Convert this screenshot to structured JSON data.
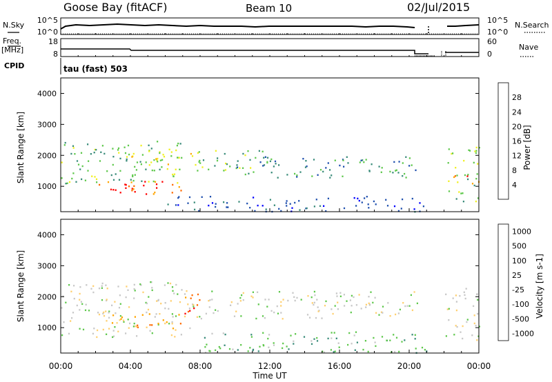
{
  "header": {
    "station": "Goose Bay (fitACF)",
    "beam": "Beam 10",
    "date": "02/Jul/2015"
  },
  "top_panels": {
    "nsky_label": "N.Sky",
    "nsearch_label": "N.Search",
    "noise_ticks": [
      "10^5",
      "10^0"
    ],
    "freq_label": "Freq.",
    "freq_unit": "[MHz]",
    "freq_ticks": [
      "18",
      "8"
    ],
    "nave_label": "Nave",
    "nave_ticks": [
      "60",
      "0"
    ],
    "cpid_label": "CPID",
    "cpid_value": "tau (fast) 503"
  },
  "colors": {
    "power": [
      "#0000ff",
      "#1f4fae",
      "#3a8c7a",
      "#5fc84c",
      "#f0f020",
      "#ffa500",
      "#ff6a00",
      "#ff0000"
    ],
    "velocity": [
      "#ff0000",
      "#ff6a00",
      "#ffa500",
      "#ffd070",
      "#c8c8c8",
      "#5fc84c",
      "#3a8c7a",
      "#1f4fae",
      "#0000cc"
    ],
    "ground_scatter": "#c0c0c0"
  },
  "chart_data": [
    {
      "type": "heatmap",
      "panel": "power",
      "ylabel": "Slant Range [km]",
      "ylim": [
        180,
        4500
      ],
      "yticks": [
        "1000",
        "2000",
        "3000",
        "4000"
      ],
      "xlim": [
        0,
        24
      ],
      "colorbar_label": "Power [dB]",
      "colorbar_ticks": [
        "4",
        "8",
        "12",
        "16",
        "20",
        "24",
        "28"
      ],
      "regions": [
        {
          "t": [
            0.0,
            7.2
          ],
          "r": [
            1100,
            2500
          ],
          "level": 3
        },
        {
          "t": [
            2.0,
            7.0
          ],
          "r": [
            750,
            1200
          ],
          "level": 6
        },
        {
          "t": [
            2.5,
            5.5
          ],
          "r": [
            800,
            1000
          ],
          "level": 7
        },
        {
          "t": [
            4.0,
            8.0
          ],
          "r": [
            1700,
            2200
          ],
          "level": 4
        },
        {
          "t": [
            7.5,
            12.0
          ],
          "r": [
            1500,
            2200
          ],
          "level": 3
        },
        {
          "t": [
            10.0,
            20.5
          ],
          "r": [
            1300,
            2000
          ],
          "level": 2
        },
        {
          "t": [
            6.0,
            21.0
          ],
          "r": [
            200,
            700
          ],
          "level": 1
        },
        {
          "t": [
            22.2,
            24.0
          ],
          "r": [
            500,
            2300
          ],
          "level": 3
        },
        {
          "t": [
            22.5,
            24.0
          ],
          "r": [
            1100,
            1400
          ],
          "level": 6
        }
      ]
    },
    {
      "type": "heatmap",
      "panel": "velocity",
      "ylabel": "Slant Range [km]",
      "xlabel": "Time UT",
      "ylim": [
        180,
        4500
      ],
      "yticks": [
        "1000",
        "2000",
        "3000",
        "4000"
      ],
      "xlim": [
        0,
        24
      ],
      "xticks": [
        "00:00",
        "04:00",
        "08:00",
        "12:00",
        "16:00",
        "20:00",
        "00:00"
      ],
      "colorbar_label": "Velocity [m s-1]",
      "colorbar_ticks": [
        "1000",
        "500",
        "100",
        "25",
        "-25",
        "-100",
        "-500",
        "-1000"
      ],
      "regions": [
        {
          "t": [
            0.0,
            7.5
          ],
          "r": [
            700,
            2500
          ],
          "level": 4
        },
        {
          "t": [
            2.0,
            7.0
          ],
          "r": [
            1000,
            1500
          ],
          "level": 2
        },
        {
          "t": [
            7.0,
            8.0
          ],
          "r": [
            1300,
            2300
          ],
          "level": 1
        },
        {
          "t": [
            7.5,
            20.5
          ],
          "r": [
            1300,
            2200
          ],
          "level": 4
        },
        {
          "t": [
            8.0,
            21.0
          ],
          "r": [
            200,
            900
          ],
          "level": 5
        },
        {
          "t": [
            22.0,
            24.0
          ],
          "r": [
            600,
            2300
          ],
          "level": 4
        }
      ]
    }
  ]
}
